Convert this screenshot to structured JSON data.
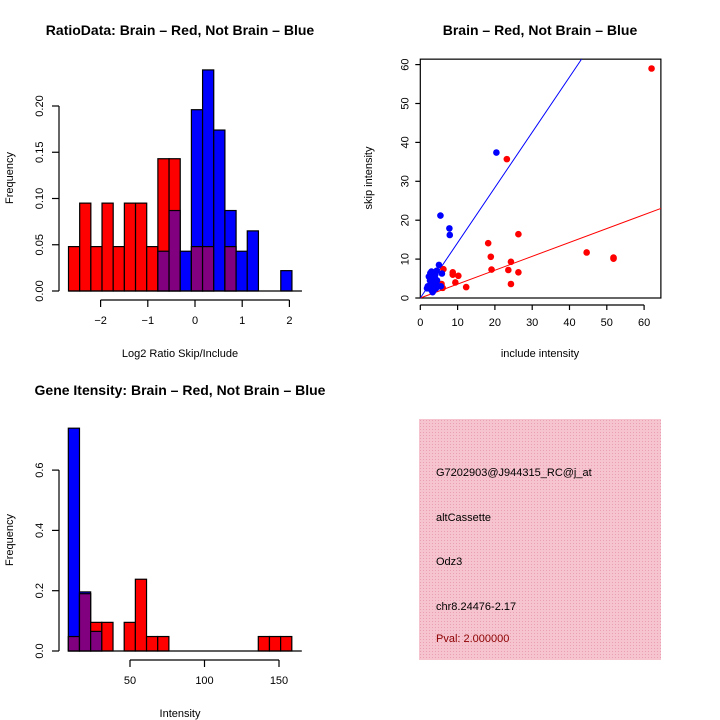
{
  "chart_data": [
    {
      "type": "bar",
      "title": "RatioData: Brain – Red, Not Brain – Blue",
      "xlabel": "Log2 Ratio Skip/Include",
      "ylabel": "Frequency",
      "bin_start": -2.68,
      "bin_width": 0.2367,
      "xticks": [
        -2,
        -1,
        0,
        1,
        2
      ],
      "xtick_labels": [
        "−2",
        "−1",
        "0",
        "1",
        "2"
      ],
      "yticks": [
        0,
        0.05,
        0.1,
        0.15,
        0.2
      ],
      "ytick_labels": [
        "0.00",
        "0.05",
        "0.10",
        "0.15",
        "0.20"
      ],
      "overlap_color": "#800080",
      "series": [
        {
          "name": "Brain",
          "color": "#ff0000",
          "values": [
            0.048,
            0.095,
            0.048,
            0.095,
            0.048,
            0.095,
            0.095,
            0.048,
            0.143,
            0.143,
            0,
            0.048,
            0.048,
            0,
            0.048,
            0,
            0,
            0,
            0,
            0
          ]
        },
        {
          "name": "Not Brain",
          "color": "#0000ff",
          "values": [
            0,
            0,
            0,
            0,
            0,
            0,
            0,
            0,
            0.043,
            0.087,
            0.043,
            0.196,
            0.239,
            0.174,
            0.087,
            0.043,
            0.065,
            0,
            0,
            0.022
          ]
        }
      ]
    },
    {
      "type": "scatter",
      "title": "Brain – Red, Not Brain – Blue",
      "xlabel": "include intensity",
      "ylabel": "skip intensity",
      "xlim": [
        0,
        64.5
      ],
      "ylim": [
        0,
        61.4
      ],
      "xticks": [
        0,
        10,
        20,
        30,
        40,
        50,
        60
      ],
      "yticks": [
        0,
        10,
        20,
        30,
        40,
        50,
        60
      ],
      "series": [
        {
          "name": "Brain",
          "color": "#ff0000",
          "fit_slope": 0.357,
          "points": [
            [
              62,
              59
            ],
            [
              23.2,
              35.7
            ],
            [
              18.2,
              14.1
            ],
            [
              26.3,
              16.4
            ],
            [
              18.9,
              10.6
            ],
            [
              24.3,
              9.3
            ],
            [
              19.1,
              7.3
            ],
            [
              23.6,
              7.2
            ],
            [
              26.3,
              6.6
            ],
            [
              24.3,
              3.6
            ],
            [
              44.6,
              11.7
            ],
            [
              51.8,
              10.4
            ],
            [
              51.8,
              10.1
            ],
            [
              8.7,
              6.6
            ],
            [
              10.2,
              5.7
            ],
            [
              9.4,
              4.0
            ],
            [
              12.3,
              2.8
            ],
            [
              8.7,
              6.0
            ],
            [
              6.2,
              7.4
            ],
            [
              5.7,
              3.6
            ],
            [
              6.0,
              2.6
            ]
          ]
        },
        {
          "name": "Not Brain",
          "color": "#0000ff",
          "fit_slope": 1.42,
          "points": [
            [
              20.4,
              37.4
            ],
            [
              5.4,
              21.2
            ],
            [
              7.8,
              17.9
            ],
            [
              7.9,
              16.2
            ],
            [
              5.0,
              8.5
            ],
            [
              5.8,
              6.3
            ],
            [
              2.7,
              6.4
            ],
            [
              3.6,
              6.4
            ],
            [
              2,
              3
            ],
            [
              2.5,
              2.8
            ],
            [
              3,
              2
            ],
            [
              3.2,
              4
            ],
            [
              3.5,
              5
            ],
            [
              2.8,
              5.5
            ],
            [
              3,
              6.8
            ],
            [
              4,
              5
            ],
            [
              4.5,
              4.5
            ],
            [
              3.8,
              3
            ],
            [
              4.2,
              2.5
            ],
            [
              2.3,
              5.5
            ],
            [
              3.6,
              2
            ],
            [
              4.8,
              3
            ],
            [
              5.5,
              3
            ],
            [
              3.3,
              1.5
            ],
            [
              2.6,
              4.5
            ],
            [
              4,
              6
            ],
            [
              3.1,
              3.5
            ],
            [
              4.4,
              7
            ],
            [
              1.8,
              2.5
            ],
            [
              2.9,
              3.8
            ],
            [
              3.4,
              4.8
            ],
            [
              4.1,
              3.6
            ]
          ]
        }
      ]
    },
    {
      "type": "bar",
      "title": "Gene Itensity: Brain – Red, Not Brain – Blue",
      "xlabel": "Intensity",
      "ylabel": "Frequency",
      "bin_start": 8.6,
      "bin_width": 7.5,
      "xticks": [
        50,
        100,
        150
      ],
      "xtick_labels": [
        "50",
        "100",
        "150"
      ],
      "yticks": [
        0,
        0.2,
        0.4,
        0.6
      ],
      "ytick_labels": [
        "0.0",
        "0.2",
        "0.4",
        "0.6"
      ],
      "overlap_color": "#800080",
      "series": [
        {
          "name": "Brain",
          "color": "#ff0000",
          "values": [
            0.048,
            0.19,
            0.095,
            0.095,
            0,
            0.095,
            0.238,
            0.048,
            0.048,
            0,
            0,
            0,
            0,
            0,
            0,
            0,
            0,
            0.048,
            0.048,
            0.048
          ]
        },
        {
          "name": "Not Brain",
          "color": "#0000ff",
          "values": [
            0.739,
            0.196,
            0.065,
            0,
            0,
            0,
            0,
            0,
            0,
            0,
            0,
            0,
            0,
            0,
            0,
            0,
            0,
            0,
            0,
            0
          ]
        }
      ]
    }
  ],
  "info_panel": {
    "background": "#f4c0cc",
    "lines": [
      "G7202903@J944315_RC@j_at",
      "altCassette",
      "Odz3",
      "chr8.24476-2.17"
    ],
    "pval": "Pval: 2.000000",
    "pval_color": "#8b0000"
  }
}
